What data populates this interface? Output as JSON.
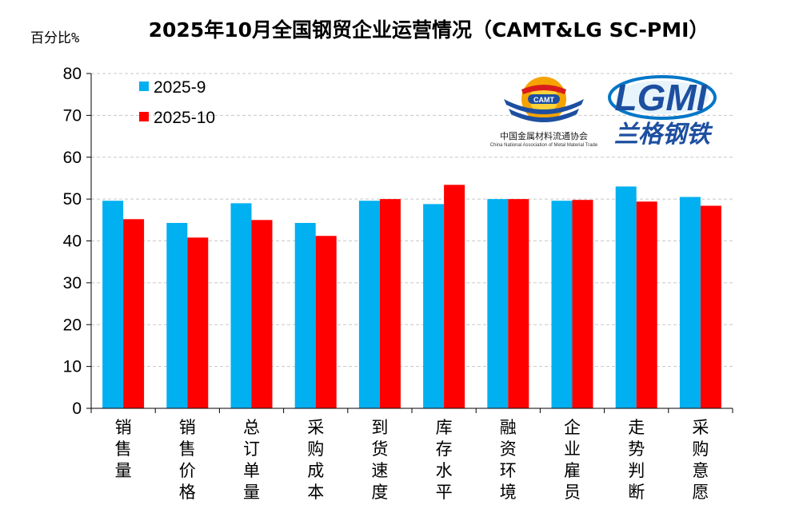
{
  "chart_data": {
    "type": "bar",
    "title": "2025年10月全国钢贸企业运营情况（CAMT&LG SC-PMI）",
    "ylabel": "百分比%",
    "xlabel": "",
    "ylim": [
      0,
      80
    ],
    "yticks": [
      "0",
      "10",
      "20",
      "30",
      "40",
      "50",
      "60",
      "70",
      "80"
    ],
    "grid": true,
    "legend_position": "top-left",
    "categories": [
      "销售量",
      "销售价格",
      "总订单量",
      "采购成本",
      "到货速度",
      "库存水平",
      "融资环境",
      "企业雇员",
      "走势判断",
      "采购意愿"
    ],
    "series": [
      {
        "name": "2025-9",
        "color": "#00b0f0",
        "values": [
          49.6,
          44.3,
          49.0,
          44.3,
          49.6,
          48.8,
          50.0,
          49.6,
          53.0,
          50.5
        ]
      },
      {
        "name": "2025-10",
        "color": "#ff0000",
        "values": [
          45.2,
          40.8,
          45.0,
          41.2,
          50.0,
          53.4,
          50.0,
          49.8,
          49.4,
          48.4
        ]
      }
    ]
  },
  "logos": {
    "camt_badge": "CAMT",
    "camt_name_cn": "中国金属材料流通协会",
    "camt_name_en": "China National Association of Metal Material Trade",
    "lgmi_name": "LGMI",
    "lgmi_name_cn": "兰格钢铁"
  }
}
